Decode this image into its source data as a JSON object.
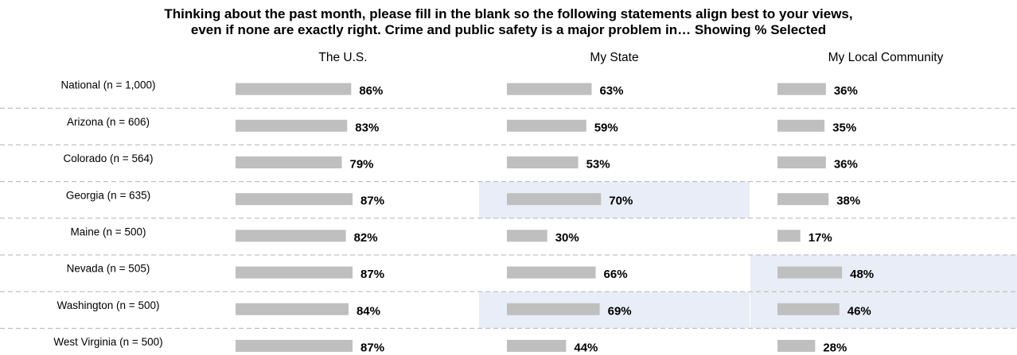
{
  "title_line1": "Thinking about the past month, please fill in the blank so the following statements align best to your views,",
  "title_line2": "even if none are exactly right. Crime and public safety is a major problem in… Showing % Selected",
  "colors": {
    "bar": "#bfbfbf",
    "highlight": "#e9edf7",
    "divider": "#b3b3b3"
  },
  "chart_data": {
    "type": "bar",
    "orientation": "horizontal",
    "columns": [
      "The U.S.",
      "My State",
      "My Local Community"
    ],
    "categories": [
      "National (n = 1,000)",
      "Arizona (n = 606)",
      "Colorado (n = 564)",
      "Georgia (n = 635)",
      "Maine (n = 500)",
      "Nevada (n = 505)",
      "Washington (n = 500)",
      "West Virginia (n = 500)"
    ],
    "series": [
      {
        "values": [
          86,
          83,
          79,
          87,
          82,
          87,
          84,
          87
        ]
      },
      {
        "values": [
          63,
          59,
          53,
          70,
          30,
          66,
          69,
          44
        ]
      },
      {
        "values": [
          36,
          35,
          36,
          38,
          17,
          48,
          46,
          28
        ]
      }
    ],
    "value_suffix": "%",
    "highlighted": [
      {
        "row": 3,
        "col": 1
      },
      {
        "row": 5,
        "col": 2
      },
      {
        "row": 6,
        "col": 1
      },
      {
        "row": 6,
        "col": 2
      }
    ],
    "grid": false
  }
}
